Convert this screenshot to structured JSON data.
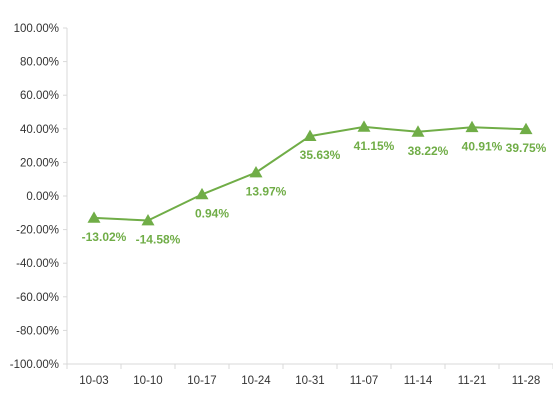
{
  "chart_data": {
    "type": "line",
    "categories": [
      "10-03",
      "10-10",
      "10-17",
      "10-24",
      "10-31",
      "11-07",
      "11-14",
      "11-21",
      "11-28"
    ],
    "series": [
      {
        "values": [
          -13.02,
          -14.58,
          0.94,
          13.97,
          35.63,
          41.15,
          38.22,
          40.91,
          39.75
        ],
        "labels": [
          "-13.02%",
          "-14.58%",
          "0.94%",
          "13.97%",
          "35.63%",
          "41.15%",
          "38.22%",
          "40.91%",
          "39.75%"
        ],
        "color": "#70AD47",
        "marker": "triangle"
      }
    ],
    "y_ticks": [
      "100.00%",
      "80.00%",
      "60.00%",
      "40.00%",
      "20.00%",
      "0.00%",
      "-20.00%",
      "-40.00%",
      "-60.00%",
      "-80.00%",
      "-100.00%"
    ],
    "y_tick_values": [
      100,
      80,
      60,
      40,
      20,
      0,
      -20,
      -40,
      -60,
      -80,
      -100
    ],
    "ylim": [
      -100,
      100
    ],
    "grid": false,
    "legend": "none",
    "axis_color": "#d9d9d9"
  }
}
